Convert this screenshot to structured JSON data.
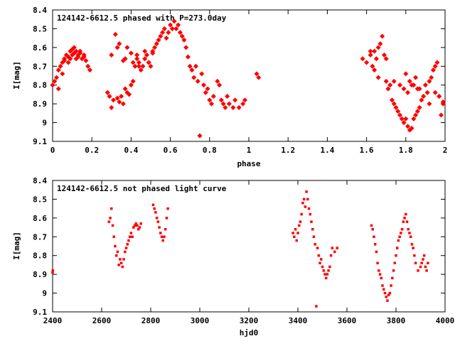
{
  "chart_data": [
    {
      "type": "scatter",
      "title": "124142-6612.5 phased with P=273.0day",
      "xlabel": "phase",
      "ylabel": "I[mag]",
      "xlim": [
        0,
        2
      ],
      "ylim": [
        9.1,
        8.4
      ],
      "y_inverted": true,
      "xticks": [
        "0",
        "0.2",
        "0.4",
        "0.6",
        "0.8",
        "1",
        "1.2",
        "1.4",
        "1.6",
        "1.8",
        "2"
      ],
      "yticks": [
        "8.4",
        "8.5",
        "8.6",
        "8.7",
        "8.8",
        "8.9",
        "9",
        "9.1"
      ],
      "marker_color": "#ff0000",
      "series": [
        {
          "x": [
            0.0,
            0.01,
            0.02,
            0.03,
            0.04,
            0.05,
            0.06,
            0.07,
            0.08,
            0.09,
            0.1,
            0.11,
            0.12,
            0.13,
            0.14,
            0.15,
            0.16,
            0.17,
            0.18,
            0.19,
            0.06,
            0.08,
            0.1,
            0.12,
            0.14,
            0.16,
            0.03,
            0.05,
            0.09,
            0.11,
            0.13,
            0.28,
            0.29,
            0.3,
            0.31,
            0.33,
            0.34,
            0.35,
            0.36,
            0.37,
            0.38,
            0.39,
            0.4,
            0.41,
            0.42,
            0.43,
            0.44,
            0.45,
            0.46,
            0.47,
            0.48,
            0.49,
            0.5,
            0.51,
            0.52,
            0.53,
            0.54,
            0.55,
            0.56,
            0.57,
            0.58,
            0.59,
            0.6,
            0.61,
            0.62,
            0.63,
            0.64,
            0.65,
            0.66,
            0.67,
            0.68,
            0.69,
            0.7,
            0.71,
            0.72,
            0.73,
            0.74,
            0.75,
            0.76,
            0.77,
            0.78,
            0.79,
            0.8,
            0.81,
            0.82,
            0.84,
            0.85,
            0.86,
            0.87,
            0.88,
            0.89,
            0.9,
            0.92,
            0.93,
            0.95,
            0.97,
            0.98,
            1.04,
            1.05,
            0.32,
            0.34,
            0.37,
            0.41,
            0.43,
            0.47,
            0.49,
            0.51,
            0.4,
            0.38,
            0.36,
            0.44,
            0.3,
            0.33,
            1.58,
            1.6,
            1.62,
            1.63,
            1.64,
            1.65,
            1.66,
            1.67,
            1.68,
            1.69,
            1.7,
            1.71,
            1.72,
            1.73,
            1.74,
            1.75,
            1.76,
            1.77,
            1.78,
            1.79,
            1.8,
            1.81,
            1.82,
            1.83,
            1.84,
            1.85,
            1.86,
            1.87,
            1.88,
            1.9,
            1.91,
            1.92,
            1.93,
            1.94,
            1.95,
            1.96,
            1.97,
            1.98,
            1.99,
            1.62,
            1.64,
            1.66,
            1.7,
            1.74,
            1.77,
            1.79,
            1.81,
            1.83,
            1.85,
            1.87,
            1.89,
            1.92,
            1.95,
            1.97,
            1.99,
            1.8,
            1.82,
            1.84,
            1.86
          ],
          "y": [
            8.8,
            8.78,
            8.76,
            8.72,
            8.7,
            8.68,
            8.66,
            8.64,
            8.65,
            8.62,
            8.61,
            8.63,
            8.62,
            8.64,
            8.63,
            8.66,
            8.65,
            8.67,
            8.7,
            8.72,
            8.67,
            8.68,
            8.64,
            8.66,
            8.62,
            8.64,
            8.82,
            8.74,
            8.66,
            8.6,
            8.65,
            8.84,
            8.86,
            8.92,
            8.88,
            8.87,
            8.89,
            8.86,
            8.9,
            8.82,
            8.84,
            8.85,
            8.8,
            8.78,
            8.7,
            8.66,
            8.68,
            8.72,
            8.7,
            8.66,
            8.64,
            8.68,
            8.7,
            8.62,
            8.6,
            8.58,
            8.56,
            8.54,
            8.52,
            8.5,
            8.55,
            8.52,
            8.48,
            8.5,
            8.46,
            8.5,
            8.48,
            8.52,
            8.54,
            8.56,
            8.6,
            8.65,
            8.7,
            8.72,
            8.76,
            8.7,
            8.78,
            9.07,
            8.74,
            8.8,
            8.84,
            8.82,
            8.88,
            8.9,
            8.86,
            8.78,
            8.8,
            8.88,
            8.9,
            8.92,
            8.86,
            8.9,
            8.92,
            8.88,
            8.92,
            8.9,
            8.88,
            8.74,
            8.76,
            8.53,
            8.58,
            8.66,
            8.68,
            8.64,
            8.62,
            8.68,
            8.63,
            8.63,
            8.6,
            8.67,
            8.7,
            8.64,
            8.6,
            8.66,
            8.68,
            8.64,
            8.7,
            8.62,
            8.66,
            8.6,
            8.58,
            8.54,
            8.64,
            8.78,
            8.82,
            8.8,
            8.88,
            8.9,
            8.92,
            8.94,
            8.96,
            8.98,
            9.0,
            8.98,
            9.02,
            9.04,
            9.03,
            8.98,
            8.96,
            8.94,
            8.92,
            8.88,
            8.8,
            8.84,
            8.78,
            8.76,
            8.72,
            8.7,
            8.68,
            8.86,
            8.96,
            8.89,
            8.62,
            8.72,
            8.76,
            8.66,
            8.78,
            8.8,
            8.82,
            8.84,
            8.8,
            8.76,
            8.82,
            8.86,
            8.9,
            8.84,
            8.86,
            8.9,
            8.74,
            8.78,
            8.8,
            8.82
          ]
        }
      ]
    },
    {
      "type": "scatter",
      "title": "124142-6612.5 not phased light curve",
      "xlabel": "hjd0",
      "ylabel": "I[mag]",
      "xlim": [
        2400,
        4000
      ],
      "ylim": [
        9.1,
        8.4
      ],
      "y_inverted": true,
      "xticks": [
        "2400",
        "2600",
        "2800",
        "3000",
        "3200",
        "3400",
        "3600",
        "3800",
        "4000"
      ],
      "yticks": [
        "8.4",
        "8.5",
        "8.6",
        "8.7",
        "8.8",
        "8.9",
        "9",
        "9.1"
      ],
      "marker_color": "#ff0000",
      "series": [
        {
          "x": [
            2400,
            2401,
            2630,
            2635,
            2640,
            2645,
            2650,
            2655,
            2660,
            2665,
            2670,
            2675,
            2680,
            2685,
            2690,
            2695,
            2700,
            2705,
            2710,
            2715,
            2720,
            2725,
            2730,
            2735,
            2740,
            2745,
            2750,
            2755,
            2760,
            2810,
            2815,
            2820,
            2825,
            2830,
            2835,
            2840,
            2845,
            2850,
            2855,
            2860,
            2865,
            2870,
            3380,
            3385,
            3390,
            3395,
            3400,
            3405,
            3410,
            3415,
            3420,
            3425,
            3430,
            3435,
            3440,
            3445,
            3450,
            3455,
            3460,
            3465,
            3470,
            3475,
            3480,
            3485,
            3490,
            3495,
            3500,
            3505,
            3510,
            3515,
            3520,
            3525,
            3530,
            3535,
            3540,
            3550,
            3560,
            3700,
            3705,
            3710,
            3715,
            3720,
            3725,
            3730,
            3735,
            3740,
            3745,
            3750,
            3755,
            3760,
            3765,
            3770,
            3775,
            3780,
            3785,
            3790,
            3795,
            3800,
            3805,
            3810,
            3815,
            3820,
            3825,
            3830,
            3835,
            3840,
            3845,
            3850,
            3855,
            3860,
            3865,
            3870,
            3875,
            3880,
            3890,
            3900,
            3905,
            3910,
            3915,
            3920,
            3925,
            3930
          ],
          "y": [
            8.89,
            8.88,
            8.62,
            8.6,
            8.55,
            8.64,
            8.7,
            8.75,
            8.8,
            8.78,
            8.85,
            8.82,
            8.84,
            8.86,
            8.82,
            8.78,
            8.76,
            8.74,
            8.72,
            8.7,
            8.68,
            8.7,
            8.65,
            8.64,
            8.63,
            8.64,
            8.66,
            8.65,
            8.63,
            8.53,
            8.55,
            8.57,
            8.6,
            8.62,
            8.65,
            8.68,
            8.7,
            8.72,
            8.7,
            8.66,
            8.6,
            8.55,
            8.68,
            8.7,
            8.66,
            8.72,
            8.68,
            8.64,
            8.62,
            8.58,
            8.52,
            8.5,
            8.54,
            8.46,
            8.5,
            8.55,
            8.58,
            8.62,
            8.66,
            8.7,
            8.74,
            9.07,
            8.76,
            8.8,
            8.84,
            8.82,
            8.86,
            8.88,
            8.9,
            8.92,
            8.9,
            8.88,
            8.86,
            8.8,
            8.76,
            8.78,
            8.76,
            8.64,
            8.66,
            8.7,
            8.74,
            8.78,
            8.84,
            8.88,
            8.9,
            8.92,
            8.96,
            8.98,
            9.0,
            9.02,
            9.04,
            9.01,
            9.0,
            8.96,
            8.92,
            8.88,
            8.84,
            8.8,
            8.76,
            8.72,
            8.7,
            8.68,
            8.66,
            8.62,
            8.6,
            8.58,
            8.62,
            8.66,
            8.68,
            8.7,
            8.74,
            8.76,
            8.8,
            8.84,
            8.88,
            8.86,
            8.84,
            8.82,
            8.8,
            8.86,
            8.88,
            8.84
          ]
        }
      ]
    }
  ]
}
